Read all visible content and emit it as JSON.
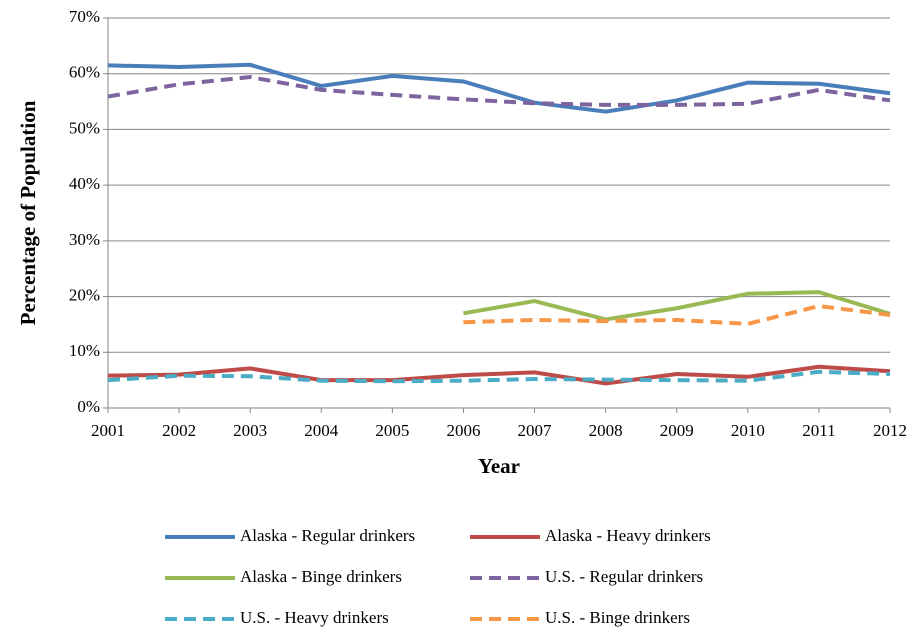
{
  "chart_data": {
    "type": "line",
    "x_label": "Year",
    "y_label": "Percentage of Population",
    "x": [
      2001,
      2002,
      2003,
      2004,
      2005,
      2006,
      2007,
      2008,
      2009,
      2010,
      2011,
      2012
    ],
    "xlim": [
      2001,
      2012
    ],
    "xticks": [
      2001,
      2002,
      2003,
      2004,
      2005,
      2006,
      2007,
      2008,
      2009,
      2010,
      2011,
      2012
    ],
    "ylim": [
      0,
      70
    ],
    "yticks": [
      {
        "value": 0,
        "label": "0%"
      },
      {
        "value": 10,
        "label": "10%"
      },
      {
        "value": 20,
        "label": "20%"
      },
      {
        "value": 30,
        "label": "30%"
      },
      {
        "value": 40,
        "label": "40%"
      },
      {
        "value": 50,
        "label": "50%"
      },
      {
        "value": 60,
        "label": "60%"
      },
      {
        "value": 70,
        "label": "70%"
      }
    ],
    "grid": true,
    "legend": "bottom",
    "series": [
      {
        "name": "Alaska - Regular drinkers",
        "color": "#4a7ebb",
        "dash": false,
        "values": [
          61.5,
          61.2,
          61.6,
          57.8,
          59.6,
          58.6,
          54.8,
          53.2,
          55.2,
          58.4,
          58.2,
          56.5
        ]
      },
      {
        "name": "Alaska - Heavy drinkers",
        "color": "#be4b48",
        "dash": false,
        "values": [
          5.8,
          6.0,
          7.1,
          5.0,
          5.0,
          5.9,
          6.4,
          4.4,
          6.1,
          5.6,
          7.4,
          6.6
        ]
      },
      {
        "name": "Alaska - Binge drinkers",
        "color": "#98b954",
        "dash": false,
        "values": [
          null,
          null,
          null,
          null,
          null,
          17.0,
          19.2,
          15.9,
          17.9,
          20.5,
          20.8,
          16.9
        ]
      },
      {
        "name": "U.S. - Regular drinkers",
        "color": "#7e649e",
        "dash": true,
        "values": [
          55.9,
          58.1,
          59.4,
          57.1,
          56.2,
          55.4,
          54.7,
          54.4,
          54.4,
          54.6,
          57.1,
          55.2
        ]
      },
      {
        "name": "U.S. - Heavy drinkers",
        "color": "#4bacc6",
        "dash": true,
        "values": [
          5.0,
          5.8,
          5.7,
          4.9,
          4.8,
          4.9,
          5.2,
          5.1,
          5.0,
          4.9,
          6.5,
          6.1
        ]
      },
      {
        "name": "U.S. - Binge drinkers",
        "color": "#f79646",
        "dash": true,
        "values": [
          null,
          null,
          null,
          null,
          null,
          15.4,
          15.8,
          15.6,
          15.8,
          15.1,
          18.3,
          16.7
        ]
      }
    ]
  }
}
